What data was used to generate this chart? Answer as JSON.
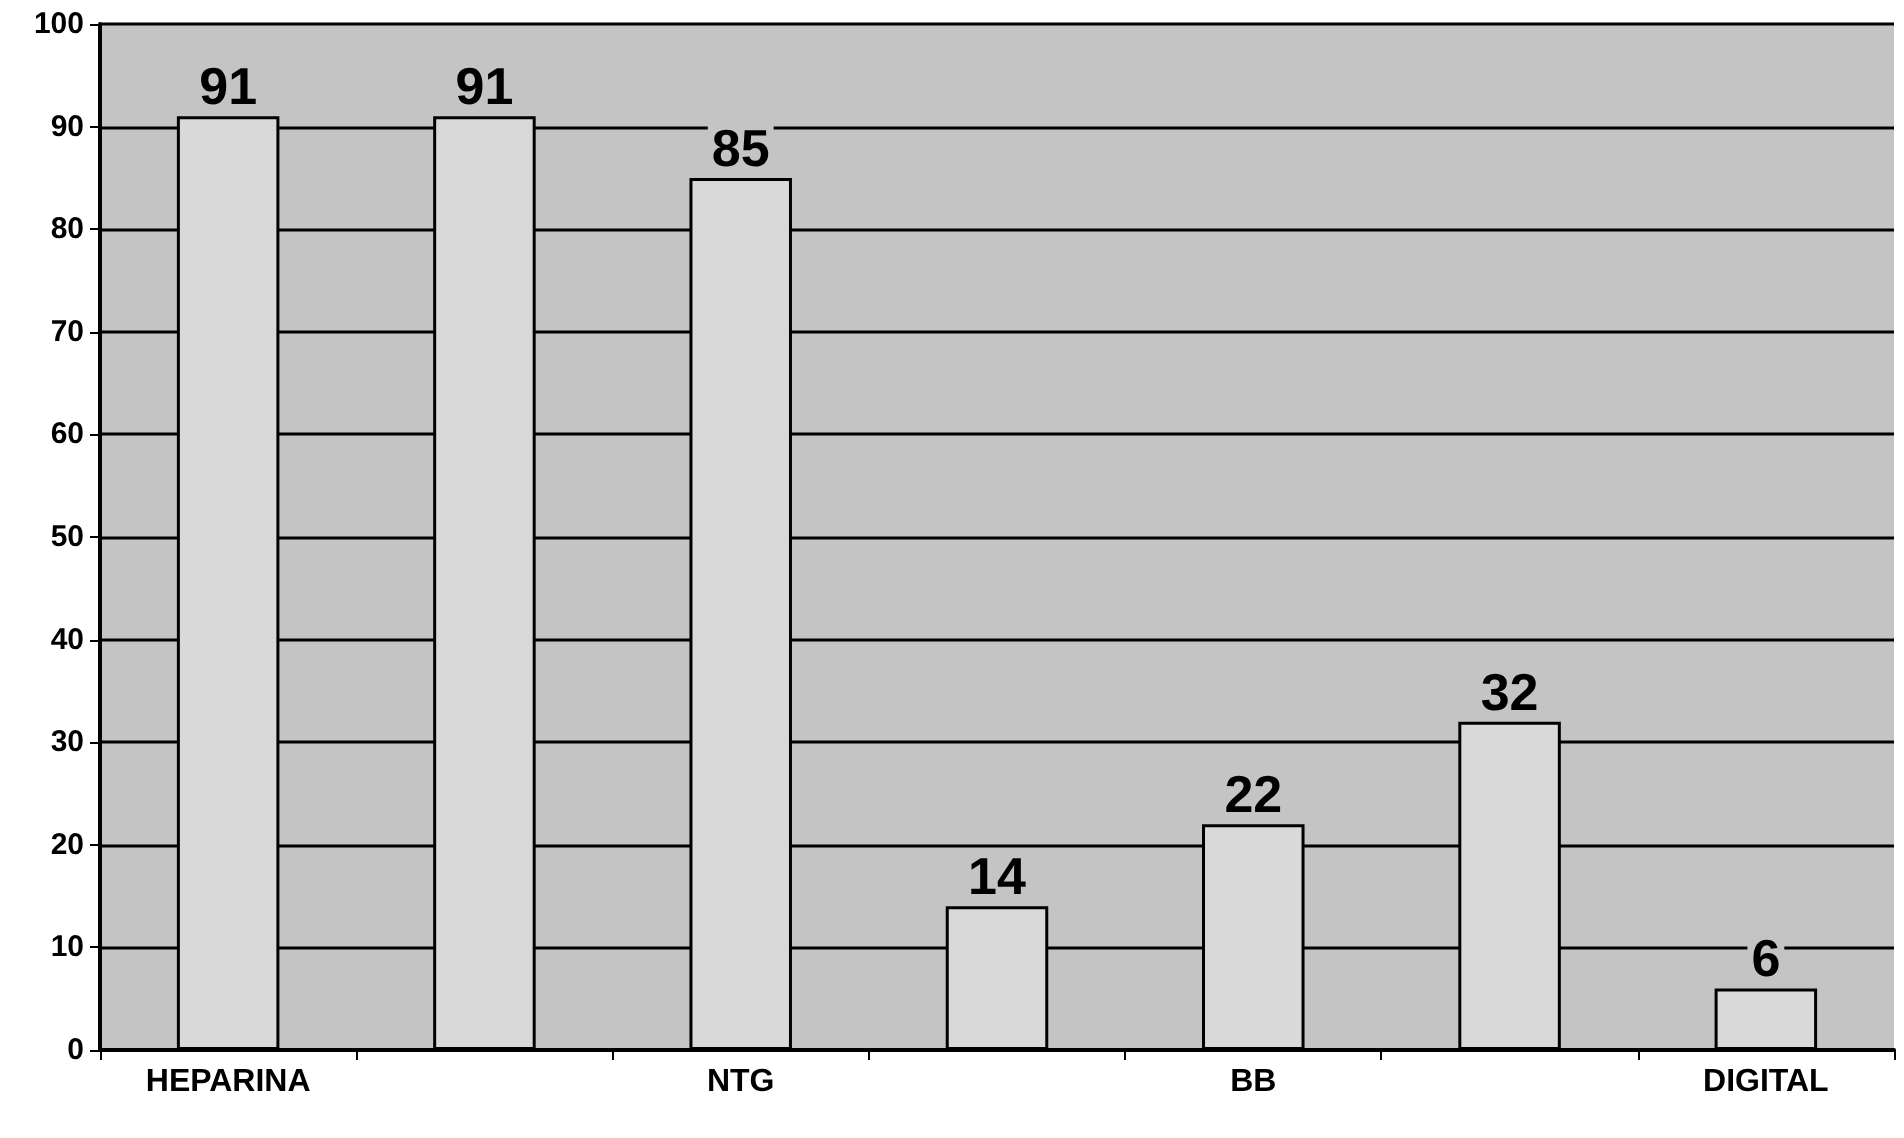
{
  "chart_data": {
    "type": "bar",
    "categories": [
      "HEPARINA",
      null,
      "NTG",
      null,
      "BB",
      null,
      "DIGITAL"
    ],
    "values": [
      91,
      91,
      85,
      14,
      22,
      32,
      6
    ],
    "color": "#d9d9d9",
    "ylim": [
      0,
      100
    ],
    "yticks": [
      0,
      10,
      20,
      30,
      40,
      50,
      60,
      70,
      80,
      90,
      100
    ],
    "grid": "y",
    "data_labels": true
  }
}
